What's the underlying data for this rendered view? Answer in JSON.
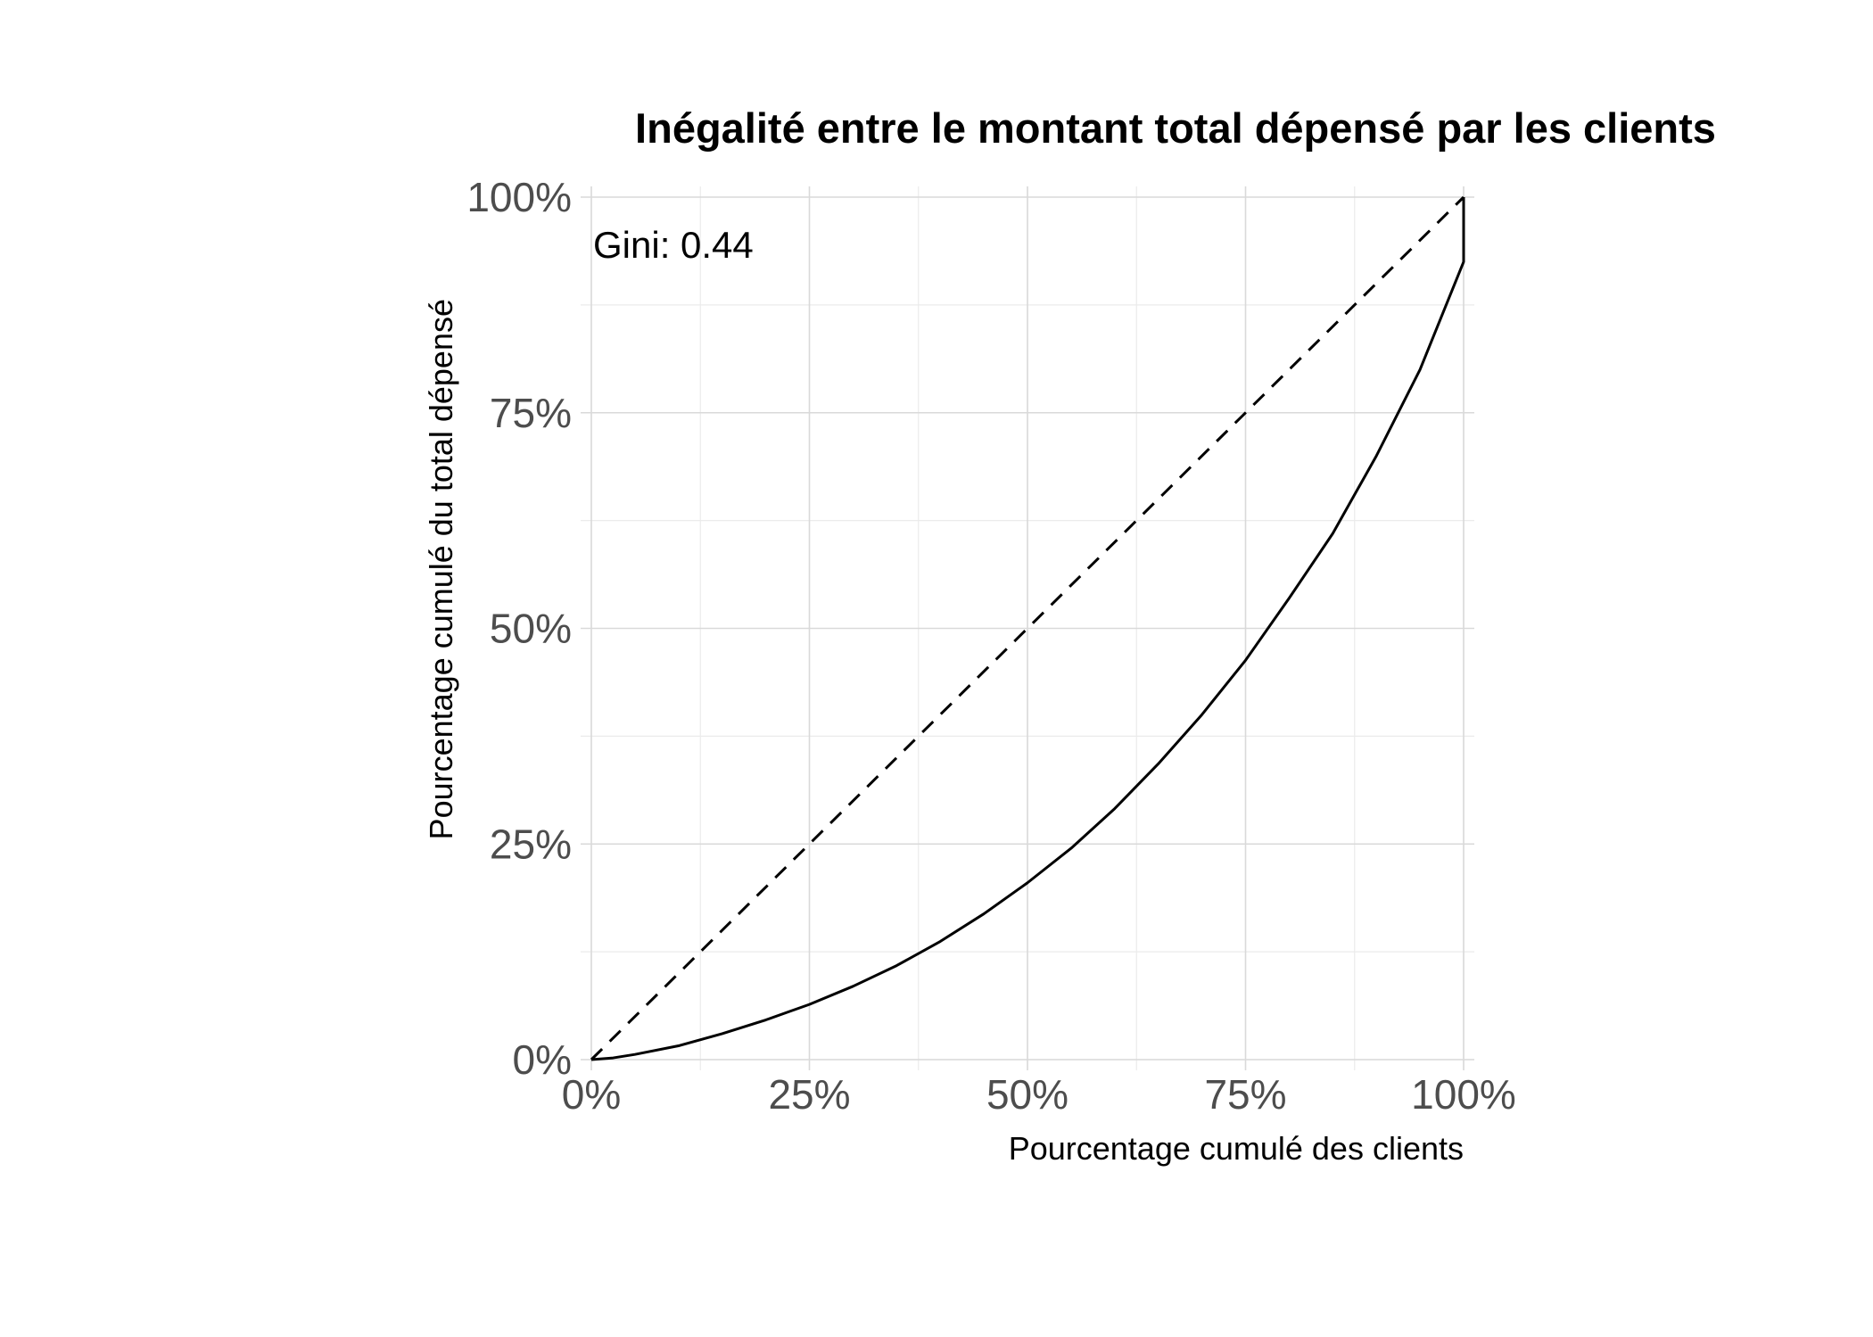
{
  "chart_data": {
    "type": "line",
    "title": "Inégalité entre le montant total dépensé par les clients",
    "xlabel": "Pourcentage cumulé des clients",
    "ylabel": "Pourcentage cumulé du total dépensé",
    "xlim": [
      0,
      1
    ],
    "ylim": [
      0,
      1
    ],
    "x_ticks": [
      0,
      0.25,
      0.5,
      0.75,
      1
    ],
    "x_tick_labels": [
      "0%",
      "25%",
      "50%",
      "75%",
      "100%"
    ],
    "y_ticks": [
      0,
      0.25,
      0.5,
      0.75,
      1
    ],
    "y_tick_labels": [
      "0%",
      "25%",
      "50%",
      "75%",
      "100%"
    ],
    "grid": true,
    "annotation": "Gini: 0.44",
    "series": [
      {
        "style": "solid",
        "color": "#000000",
        "x": [
          0,
          0.025,
          0.05,
          0.1,
          0.15,
          0.2,
          0.25,
          0.3,
          0.35,
          0.4,
          0.45,
          0.5,
          0.55,
          0.6,
          0.65,
          0.7,
          0.75,
          0.8,
          0.85,
          0.9,
          0.95,
          1.0,
          1.0
        ],
        "y": [
          0,
          0.002,
          0.006,
          0.016,
          0.03,
          0.046,
          0.064,
          0.085,
          0.109,
          0.137,
          0.169,
          0.205,
          0.245,
          0.291,
          0.343,
          0.4,
          0.463,
          0.535,
          0.61,
          0.7,
          0.8,
          0.925,
          1.0
        ]
      },
      {
        "style": "dashed",
        "color": "#000000",
        "x": [
          0,
          1
        ],
        "y": [
          0,
          1
        ]
      }
    ]
  }
}
